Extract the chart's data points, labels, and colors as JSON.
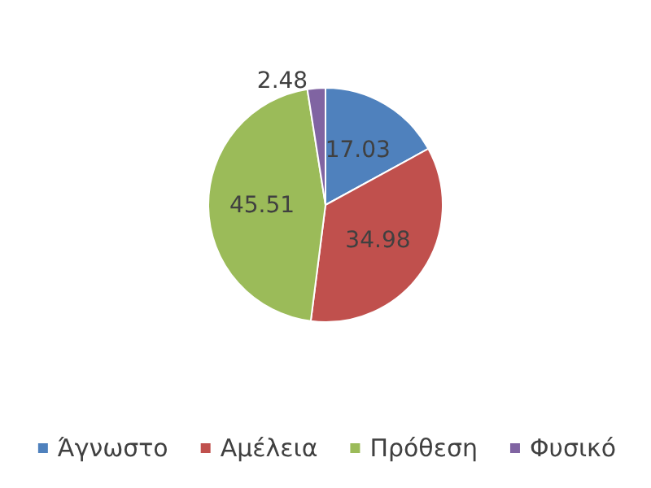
{
  "chart_data": {
    "type": "pie",
    "categories": [
      "Άγνωστο",
      "Αμέλεια",
      "Πρόθεση",
      "Φυσικό"
    ],
    "values": [
      17.03,
      34.98,
      45.51,
      2.48
    ],
    "colors": [
      "#4f81bd",
      "#c0504d",
      "#9bbb59",
      "#8064a2"
    ],
    "data_labels": true,
    "legend": "bottom"
  }
}
